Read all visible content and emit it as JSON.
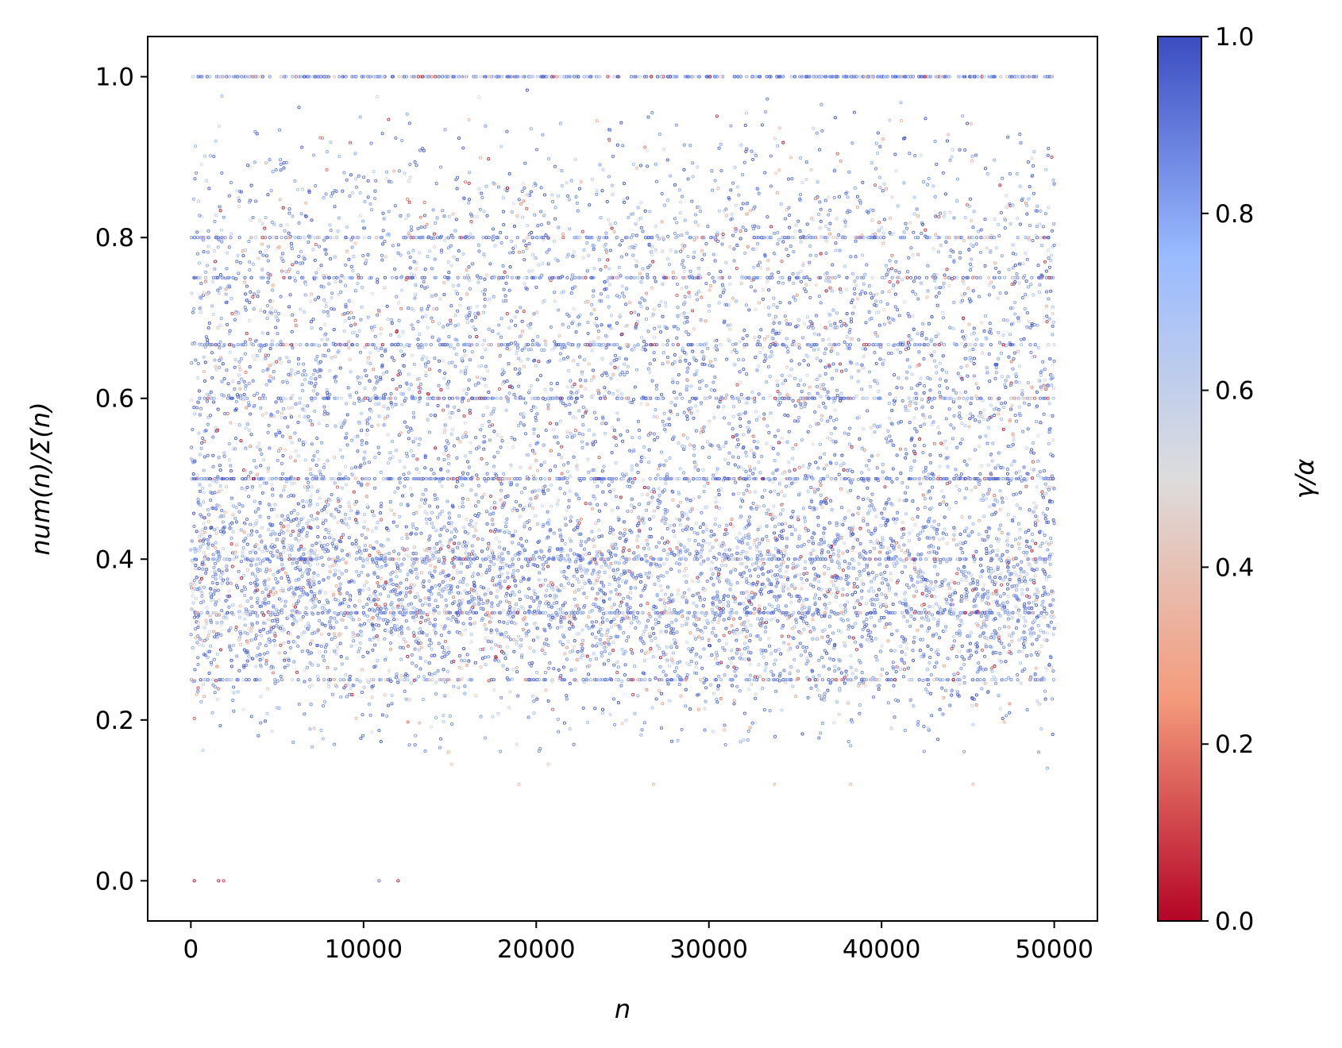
{
  "chart_data": {
    "type": "scatter",
    "title": "",
    "xlabel": "n",
    "ylabel": "num(n)/Σ(n)",
    "xlim": [
      -2500,
      52500
    ],
    "ylim": [
      -0.05,
      1.05
    ],
    "x_ticks": [
      {
        "value": 0,
        "label": "0"
      },
      {
        "value": 10000,
        "label": "10000"
      },
      {
        "value": 20000,
        "label": "20000"
      },
      {
        "value": 30000,
        "label": "30000"
      },
      {
        "value": 40000,
        "label": "40000"
      },
      {
        "value": 50000,
        "label": "50000"
      }
    ],
    "y_ticks": [
      {
        "value": 0.0,
        "label": "0.0"
      },
      {
        "value": 0.2,
        "label": "0.2"
      },
      {
        "value": 0.4,
        "label": "0.4"
      },
      {
        "value": 0.6,
        "label": "0.6"
      },
      {
        "value": 0.8,
        "label": "0.8"
      },
      {
        "value": 1.0,
        "label": "1.0"
      }
    ],
    "grid": false,
    "colormap": "coolwarm_r",
    "colorbar": {
      "label": "γ/α",
      "range": [
        0.0,
        1.0
      ],
      "ticks": [
        {
          "value": 0.0,
          "label": "0.0"
        },
        {
          "value": 0.2,
          "label": "0.2"
        },
        {
          "value": 0.4,
          "label": "0.4"
        },
        {
          "value": 0.6,
          "label": "0.6"
        },
        {
          "value": 0.8,
          "label": "0.8"
        },
        {
          "value": 1.0,
          "label": "1.0"
        }
      ],
      "stops": [
        {
          "value": 0.0,
          "color": "#b40426"
        },
        {
          "value": 0.25,
          "color": "#f49a7b"
        },
        {
          "value": 0.5,
          "color": "#dddcdc"
        },
        {
          "value": 0.75,
          "color": "#9abbff"
        },
        {
          "value": 1.0,
          "color": "#3b4cc0"
        }
      ]
    },
    "x_range": [
      0,
      50000
    ],
    "horizontal_bands": [
      1.0,
      0.8,
      0.75,
      0.6667,
      0.6,
      0.5,
      0.4,
      0.3333,
      0.25
    ],
    "outliers": [
      {
        "x": 200,
        "y": 0.0,
        "c": 0.0
      },
      {
        "x": 1600,
        "y": 0.0,
        "c": 0.05
      },
      {
        "x": 1900,
        "y": 0.0,
        "c": 0.1
      },
      {
        "x": 10900,
        "y": 0.0,
        "c": 0.9
      },
      {
        "x": 12000,
        "y": 0.0,
        "c": 0.05
      },
      {
        "x": 19000,
        "y": 0.12,
        "c": 0.35
      },
      {
        "x": 26800,
        "y": 0.12,
        "c": 0.35
      },
      {
        "x": 33800,
        "y": 0.12,
        "c": 0.35
      },
      {
        "x": 38200,
        "y": 0.12,
        "c": 0.35
      },
      {
        "x": 45300,
        "y": 0.12,
        "c": 0.35
      },
      {
        "x": 15100,
        "y": 0.145,
        "c": 0.4
      },
      {
        "x": 20700,
        "y": 0.145,
        "c": 0.4
      },
      {
        "x": 49100,
        "y": 0.16,
        "c": 0.85
      },
      {
        "x": 49600,
        "y": 0.14,
        "c": 0.8
      }
    ],
    "color_density_note": "dense cloud, mostly blue (0.7-1.0), scattered red/orange points"
  }
}
